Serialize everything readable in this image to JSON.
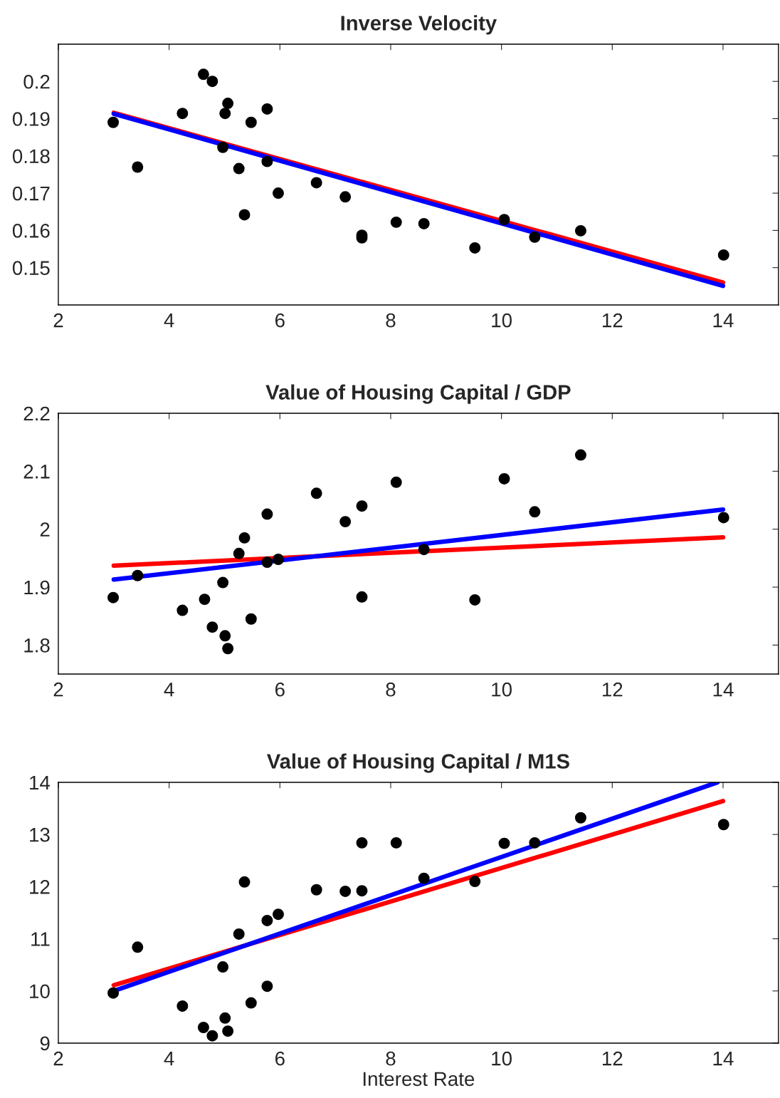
{
  "chart_data": [
    {
      "type": "scatter",
      "title": "Inverse Velocity",
      "xlim": [
        2,
        15
      ],
      "xticks": [
        2,
        4,
        6,
        8,
        10,
        12,
        14
      ],
      "ylim": [
        0.14,
        0.21
      ],
      "yticks": [
        0.15,
        0.16,
        0.17,
        0.18,
        0.19,
        0.2
      ],
      "grid": false,
      "legend": false,
      "series": [
        {
          "color": "#000000",
          "marker": "circle",
          "x": [
            2.99,
            3.43,
            4.24,
            4.62,
            4.78,
            5.01,
            5.06,
            4.97,
            5.26,
            5.36,
            5.48,
            5.77,
            5.77,
            5.97,
            6.66,
            7.18,
            7.48,
            7.48,
            8.1,
            8.6,
            9.52,
            10.05,
            10.6,
            11.43,
            14.01
          ],
          "values": [
            0.189,
            0.177,
            0.1914,
            0.2019,
            0.2,
            0.1914,
            0.1941,
            0.1823,
            0.1766,
            0.1642,
            0.189,
            0.1926,
            0.1785,
            0.17,
            0.1728,
            0.169,
            0.1587,
            0.158,
            0.1622,
            0.1618,
            0.1553,
            0.1629,
            0.1582,
            0.1599,
            0.1534
          ]
        },
        {
          "type": "line",
          "color": "#ff0000",
          "x": [
            3,
            14
          ],
          "values": [
            0.1916,
            0.146
          ]
        },
        {
          "type": "line",
          "color": "#0000ff",
          "x": [
            3,
            14
          ],
          "values": [
            0.1913,
            0.1451
          ]
        }
      ]
    },
    {
      "type": "scatter",
      "title": "Value of Housing Capital / GDP",
      "xlim": [
        2,
        15
      ],
      "xticks": [
        2,
        4,
        6,
        8,
        10,
        12,
        14
      ],
      "ylim": [
        1.75,
        2.2
      ],
      "yticks": [
        1.8,
        1.9,
        2,
        2.1,
        2.2
      ],
      "grid": false,
      "legend": false,
      "series": [
        {
          "color": "#000000",
          "marker": "circle",
          "x": [
            2.99,
            3.43,
            4.24,
            4.64,
            4.78,
            4.97,
            5.01,
            5.06,
            5.26,
            5.36,
            5.48,
            5.77,
            5.77,
            5.97,
            6.66,
            7.18,
            7.48,
            7.48,
            8.1,
            8.6,
            9.52,
            10.05,
            10.6,
            11.43,
            14.01
          ],
          "values": [
            1.882,
            1.92,
            1.86,
            1.879,
            1.831,
            1.908,
            1.816,
            1.794,
            1.958,
            1.985,
            1.845,
            2.026,
            1.943,
            1.948,
            2.062,
            2.013,
            2.04,
            1.883,
            2.081,
            1.965,
            1.878,
            2.087,
            2.03,
            2.128,
            2.02
          ]
        },
        {
          "type": "line",
          "color": "#ff0000",
          "x": [
            3,
            14
          ],
          "values": [
            1.937,
            1.986
          ]
        },
        {
          "type": "line",
          "color": "#0000ff",
          "x": [
            3,
            14
          ],
          "values": [
            1.913,
            2.034
          ]
        }
      ]
    },
    {
      "type": "scatter",
      "title": "Value of Housing Capital / M1S",
      "xlabel": "Interest Rate",
      "xlim": [
        2,
        15
      ],
      "xticks": [
        2,
        4,
        6,
        8,
        10,
        12,
        14
      ],
      "ylim": [
        9,
        14
      ],
      "yticks": [
        9,
        10,
        11,
        12,
        13,
        14
      ],
      "grid": false,
      "legend": false,
      "series": [
        {
          "color": "#000000",
          "marker": "circle",
          "x": [
            2.99,
            3.43,
            4.24,
            4.62,
            4.78,
            4.97,
            5.01,
            5.06,
            5.26,
            5.36,
            5.48,
            5.77,
            5.77,
            5.97,
            6.66,
            7.18,
            7.48,
            7.48,
            8.1,
            8.6,
            9.52,
            10.05,
            10.6,
            11.43,
            14.01
          ],
          "values": [
            9.96,
            10.84,
            9.71,
            9.3,
            9.14,
            10.46,
            9.48,
            9.23,
            11.09,
            12.09,
            9.77,
            11.35,
            10.09,
            11.47,
            11.94,
            11.91,
            12.84,
            11.92,
            12.84,
            12.16,
            12.1,
            12.83,
            12.84,
            13.32,
            13.19
          ]
        },
        {
          "type": "line",
          "color": "#ff0000",
          "x": [
            3,
            14
          ],
          "values": [
            10.11,
            13.64
          ]
        },
        {
          "type": "line",
          "color": "#0000ff",
          "x": [
            3,
            13.9
          ],
          "values": [
            10.0,
            14.0
          ]
        }
      ]
    }
  ]
}
